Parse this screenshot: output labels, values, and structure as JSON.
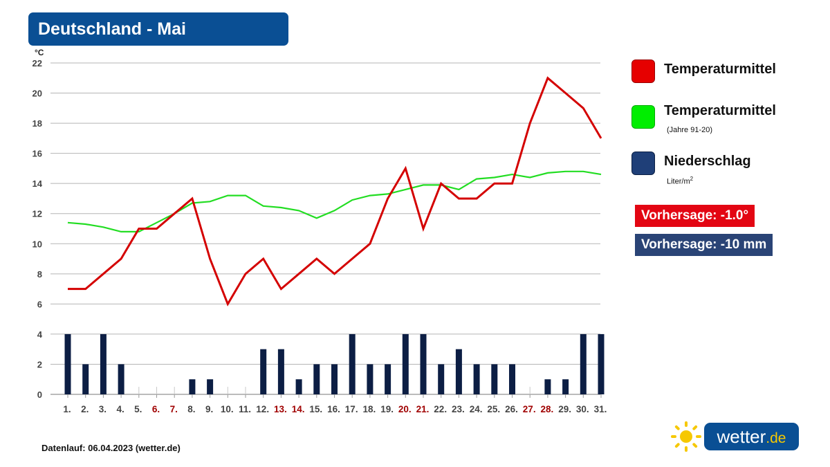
{
  "header": {
    "title": "Deutschland - Mai"
  },
  "chart_data": {
    "type": "line",
    "title": "Deutschland - Mai",
    "ylabel": "°C",
    "ylim": [
      0,
      22
    ],
    "yticks": [
      0,
      2,
      4,
      6,
      8,
      10,
      12,
      14,
      16,
      18,
      20,
      22
    ],
    "temp_axis_min": 6,
    "grid": true,
    "legend_position": "right",
    "categories": [
      "1.",
      "2.",
      "3.",
      "4.",
      "5.",
      "6.",
      "7.",
      "8.",
      "9.",
      "10.",
      "11.",
      "12.",
      "13.",
      "14.",
      "15.",
      "16.",
      "17.",
      "18.",
      "19.",
      "20.",
      "21.",
      "22.",
      "23.",
      "24.",
      "25.",
      "26.",
      "27.",
      "28.",
      "29.",
      "30.",
      "31."
    ],
    "weekend_days": [
      5,
      6,
      12,
      13,
      19,
      20,
      26,
      27
    ],
    "series": [
      {
        "name": "Temperaturmittel",
        "type": "line",
        "color": "#d40000",
        "values": [
          7,
          7,
          8,
          9,
          11,
          11,
          12,
          13,
          9,
          6,
          8,
          9,
          7,
          8,
          9,
          8,
          9,
          10,
          13,
          15,
          11,
          14,
          13,
          13,
          14,
          14,
          18,
          21,
          20,
          19,
          17
        ]
      },
      {
        "name": "Temperaturmittel",
        "type": "line",
        "color": "#22dd22",
        "values": [
          11.4,
          11.3,
          11.1,
          10.8,
          10.8,
          11.4,
          12,
          12.7,
          12.8,
          13.2,
          13.2,
          12.5,
          12.4,
          12.2,
          11.7,
          12.2,
          12.9,
          13.2,
          13.3,
          13.6,
          13.9,
          13.9,
          13.6,
          14.3,
          14.4,
          14.6,
          14.4,
          14.7,
          14.8,
          14.8,
          14.6
        ]
      },
      {
        "name": "Niederschlag",
        "type": "bar",
        "color": "#0c1e44",
        "values": [
          4,
          2,
          4,
          2,
          0,
          0,
          0,
          1,
          1,
          0,
          0,
          3,
          3,
          1,
          2,
          2,
          4,
          2,
          2,
          4,
          4,
          2,
          3,
          2,
          2,
          2,
          0,
          1,
          1,
          4,
          4
        ]
      }
    ]
  },
  "legend": {
    "items": [
      {
        "label": "Temperaturmittel",
        "sub": "",
        "color": "#e60000"
      },
      {
        "label": "Temperaturmittel",
        "sub": "(Jahre 91-20)",
        "color": "#00ee00"
      },
      {
        "label": "Niederschlag",
        "sub": "Liter/m",
        "sub_sup": "2",
        "color": "#1f3f78"
      }
    ]
  },
  "forecast": {
    "temperature": {
      "label": "Vorhersage: -1.0°",
      "color": "#e30613"
    },
    "precipitation": {
      "label": "Vorhersage: -10 mm",
      "color": "#2a4476"
    }
  },
  "footer": {
    "text": "Datenlauf: 06.04.2023 (wetter.de)"
  },
  "logo": {
    "name": "wetter",
    "tld": ".de",
    "icon": "sun-icon"
  }
}
